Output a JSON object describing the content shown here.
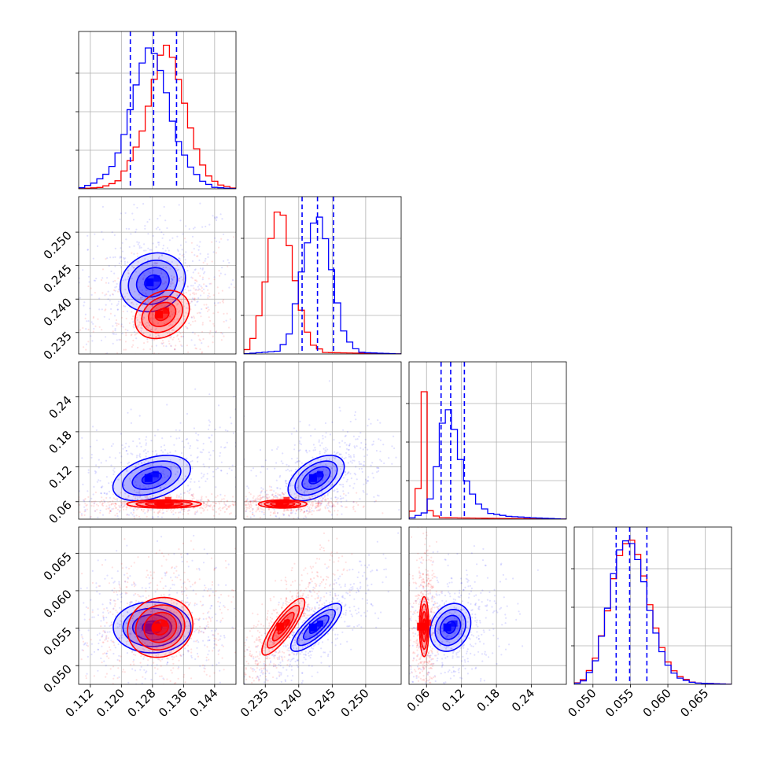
{
  "chart_data": {
    "type": "corner",
    "grid": true,
    "series": [
      {
        "color": "#ff0000",
        "blob_color": "#ff0000"
      },
      {
        "color": "#0000ff",
        "blob_color": "#0000ff"
      }
    ],
    "parameters": [
      {
        "range": [
          0.109,
          0.1495
        ],
        "ticks": [
          "0.112",
          "0.120",
          "0.128",
          "0.136",
          "0.144"
        ],
        "tick_values": [
          0.112,
          0.12,
          0.128,
          0.136,
          0.144
        ],
        "hist": {
          "red": [
            [
              0.109,
              0
            ],
            [
              0.115,
              0.01
            ],
            [
              0.119,
              0.05
            ],
            [
              0.122,
              0.18
            ],
            [
              0.125,
              0.36
            ],
            [
              0.127,
              0.58
            ],
            [
              0.129,
              0.82
            ],
            [
              0.1305,
              0.97
            ],
            [
              0.132,
              1.0
            ],
            [
              0.1335,
              0.88
            ],
            [
              0.136,
              0.62
            ],
            [
              0.138,
              0.4
            ],
            [
              0.14,
              0.22
            ],
            [
              0.142,
              0.1
            ],
            [
              0.145,
              0.03
            ],
            [
              0.1495,
              0
            ]
          ],
          "blue": [
            [
              0.109,
              0
            ],
            [
              0.113,
              0.04
            ],
            [
              0.117,
              0.12
            ],
            [
              0.12,
              0.3
            ],
            [
              0.122,
              0.52
            ],
            [
              0.124,
              0.74
            ],
            [
              0.126,
              0.93
            ],
            [
              0.1275,
              1.0
            ],
            [
              0.129,
              0.9
            ],
            [
              0.131,
              0.74
            ],
            [
              0.133,
              0.48
            ],
            [
              0.135,
              0.3
            ],
            [
              0.138,
              0.14
            ],
            [
              0.141,
              0.05
            ],
            [
              0.144,
              0.01
            ],
            [
              0.1495,
              0
            ]
          ]
        },
        "quantiles": [
          0.1223,
          0.1283,
          0.1342
        ]
      },
      {
        "range": [
          0.2318,
          0.2553
        ],
        "ticks": [
          "0.235",
          "0.240",
          "0.245",
          "0.250"
        ],
        "tick_values": [
          0.235,
          0.24,
          0.245,
          0.25
        ],
        "hist": {
          "red": [
            [
              0.2318,
              0
            ],
            [
              0.233,
              0.08
            ],
            [
              0.2345,
              0.34
            ],
            [
              0.2355,
              0.68
            ],
            [
              0.2364,
              0.97
            ],
            [
              0.2375,
              1.0
            ],
            [
              0.2387,
              0.72
            ],
            [
              0.2398,
              0.42
            ],
            [
              0.241,
              0.18
            ],
            [
              0.2422,
              0.06
            ],
            [
              0.244,
              0.01
            ],
            [
              0.2553,
              0
            ]
          ],
          "blue": [
            [
              0.2318,
              0
            ],
            [
              0.237,
              0.02
            ],
            [
              0.2385,
              0.12
            ],
            [
              0.2398,
              0.42
            ],
            [
              0.241,
              0.72
            ],
            [
              0.2421,
              0.9
            ],
            [
              0.2432,
              0.95
            ],
            [
              0.2444,
              0.72
            ],
            [
              0.2455,
              0.42
            ],
            [
              0.2467,
              0.16
            ],
            [
              0.248,
              0.05
            ],
            [
              0.2495,
              0.01
            ],
            [
              0.2553,
              0
            ]
          ]
        },
        "quantiles": [
          0.2405,
          0.2428,
          0.2452
        ]
      },
      {
        "range": [
          0.03,
          0.3
        ],
        "ticks": [
          "0.06",
          "0.12",
          "0.18",
          "0.24"
        ],
        "tick_values": [
          0.06,
          0.12,
          0.18,
          0.24
        ],
        "hist": {
          "red": [
            [
              0.03,
              0
            ],
            [
              0.045,
              0.16
            ],
            [
              0.0545,
              1.0
            ],
            [
              0.066,
              0.06
            ],
            [
              0.08,
              0.01
            ],
            [
              0.3,
              0
            ]
          ],
          "blue": [
            [
              0.03,
              0
            ],
            [
              0.06,
              0.05
            ],
            [
              0.072,
              0.22
            ],
            [
              0.082,
              0.52
            ],
            [
              0.092,
              0.8
            ],
            [
              0.102,
              0.72
            ],
            [
              0.112,
              0.55
            ],
            [
              0.122,
              0.33
            ],
            [
              0.135,
              0.2
            ],
            [
              0.15,
              0.1
            ],
            [
              0.17,
              0.04
            ],
            [
              0.2,
              0.02
            ],
            [
              0.24,
              0.01
            ],
            [
              0.3,
              0
            ]
          ]
        },
        "quantiles": [
          0.085,
          0.1015,
          0.125
        ]
      },
      {
        "range": [
          0.0475,
          0.0685
        ],
        "ticks": [
          "0.050",
          "0.055",
          "0.060",
          "0.065"
        ],
        "tick_values": [
          0.05,
          0.055,
          0.06,
          0.065
        ],
        "hist": {
          "red": [
            [
              0.0475,
              0
            ],
            [
              0.049,
              0.04
            ],
            [
              0.0505,
              0.2
            ],
            [
              0.052,
              0.52
            ],
            [
              0.053,
              0.8
            ],
            [
              0.054,
              0.96
            ],
            [
              0.0553,
              1.0
            ],
            [
              0.0565,
              0.82
            ],
            [
              0.0578,
              0.5
            ],
            [
              0.059,
              0.28
            ],
            [
              0.0603,
              0.12
            ],
            [
              0.0617,
              0.05
            ],
            [
              0.0635,
              0.01
            ],
            [
              0.0685,
              0
            ]
          ],
          "blue": [
            [
              0.0475,
              0
            ],
            [
              0.049,
              0.03
            ],
            [
              0.0505,
              0.18
            ],
            [
              0.052,
              0.54
            ],
            [
              0.053,
              0.84
            ],
            [
              0.054,
              1.0
            ],
            [
              0.0553,
              0.97
            ],
            [
              0.0565,
              0.78
            ],
            [
              0.0578,
              0.46
            ],
            [
              0.059,
              0.25
            ],
            [
              0.0603,
              0.1
            ],
            [
              0.0617,
              0.04
            ],
            [
              0.0635,
              0.01
            ],
            [
              0.0685,
              0
            ]
          ]
        },
        "quantiles": [
          0.0531,
          0.0549,
          0.0572
        ]
      }
    ],
    "contours": [
      {
        "row": 1,
        "col": 0,
        "red": {
          "center": [
            0.1305,
            0.2377
          ],
          "sigma": [
            0.0035,
            0.0018
          ],
          "rho": 0.25
        },
        "blue": {
          "center": [
            0.1281,
            0.2425
          ],
          "sigma": [
            0.0042,
            0.0022
          ],
          "rho": 0.15
        }
      },
      {
        "row": 2,
        "col": 0,
        "red": {
          "center": [
            0.131,
            0.056
          ],
          "sigma": [
            0.0048,
            0.0035
          ],
          "rho": 0.0
        },
        "blue": {
          "center": [
            0.1278,
            0.1005
          ],
          "sigma": [
            0.005,
            0.0195
          ],
          "rho": 0.4
        }
      },
      {
        "row": 2,
        "col": 1,
        "red": {
          "center": [
            0.2376,
            0.056
          ],
          "sigma": [
            0.0018,
            0.0035
          ],
          "rho": 0.0
        },
        "blue": {
          "center": [
            0.2426,
            0.1005
          ],
          "sigma": [
            0.0021,
            0.0195
          ],
          "rho": 0.5
        }
      },
      {
        "row": 3,
        "col": 0,
        "red": {
          "center": [
            0.13,
            0.0551
          ],
          "sigma": [
            0.0042,
            0.002
          ],
          "rho": 0.1
        },
        "blue": {
          "center": [
            0.1279,
            0.0551
          ],
          "sigma": [
            0.005,
            0.0017
          ],
          "rho": 0.0
        }
      },
      {
        "row": 3,
        "col": 1,
        "red": {
          "center": [
            0.2377,
            0.0552
          ],
          "sigma": [
            0.0016,
            0.0019
          ],
          "rho": 0.85
        },
        "blue": {
          "center": [
            0.2426,
            0.0551
          ],
          "sigma": [
            0.0019,
            0.0016
          ],
          "rho": 0.8
        }
      },
      {
        "row": 3,
        "col": 2,
        "red": {
          "center": [
            0.056,
            0.0552
          ],
          "sigma": [
            0.004,
            0.002
          ],
          "rho": 0.0
        },
        "blue": {
          "center": [
            0.101,
            0.0551
          ],
          "sigma": [
            0.0175,
            0.0016
          ],
          "rho": 0.2
        }
      }
    ],
    "contour_levels": [
      0.5,
      1.0,
      1.5,
      2.0
    ],
    "pixel_blocks": 2
  }
}
